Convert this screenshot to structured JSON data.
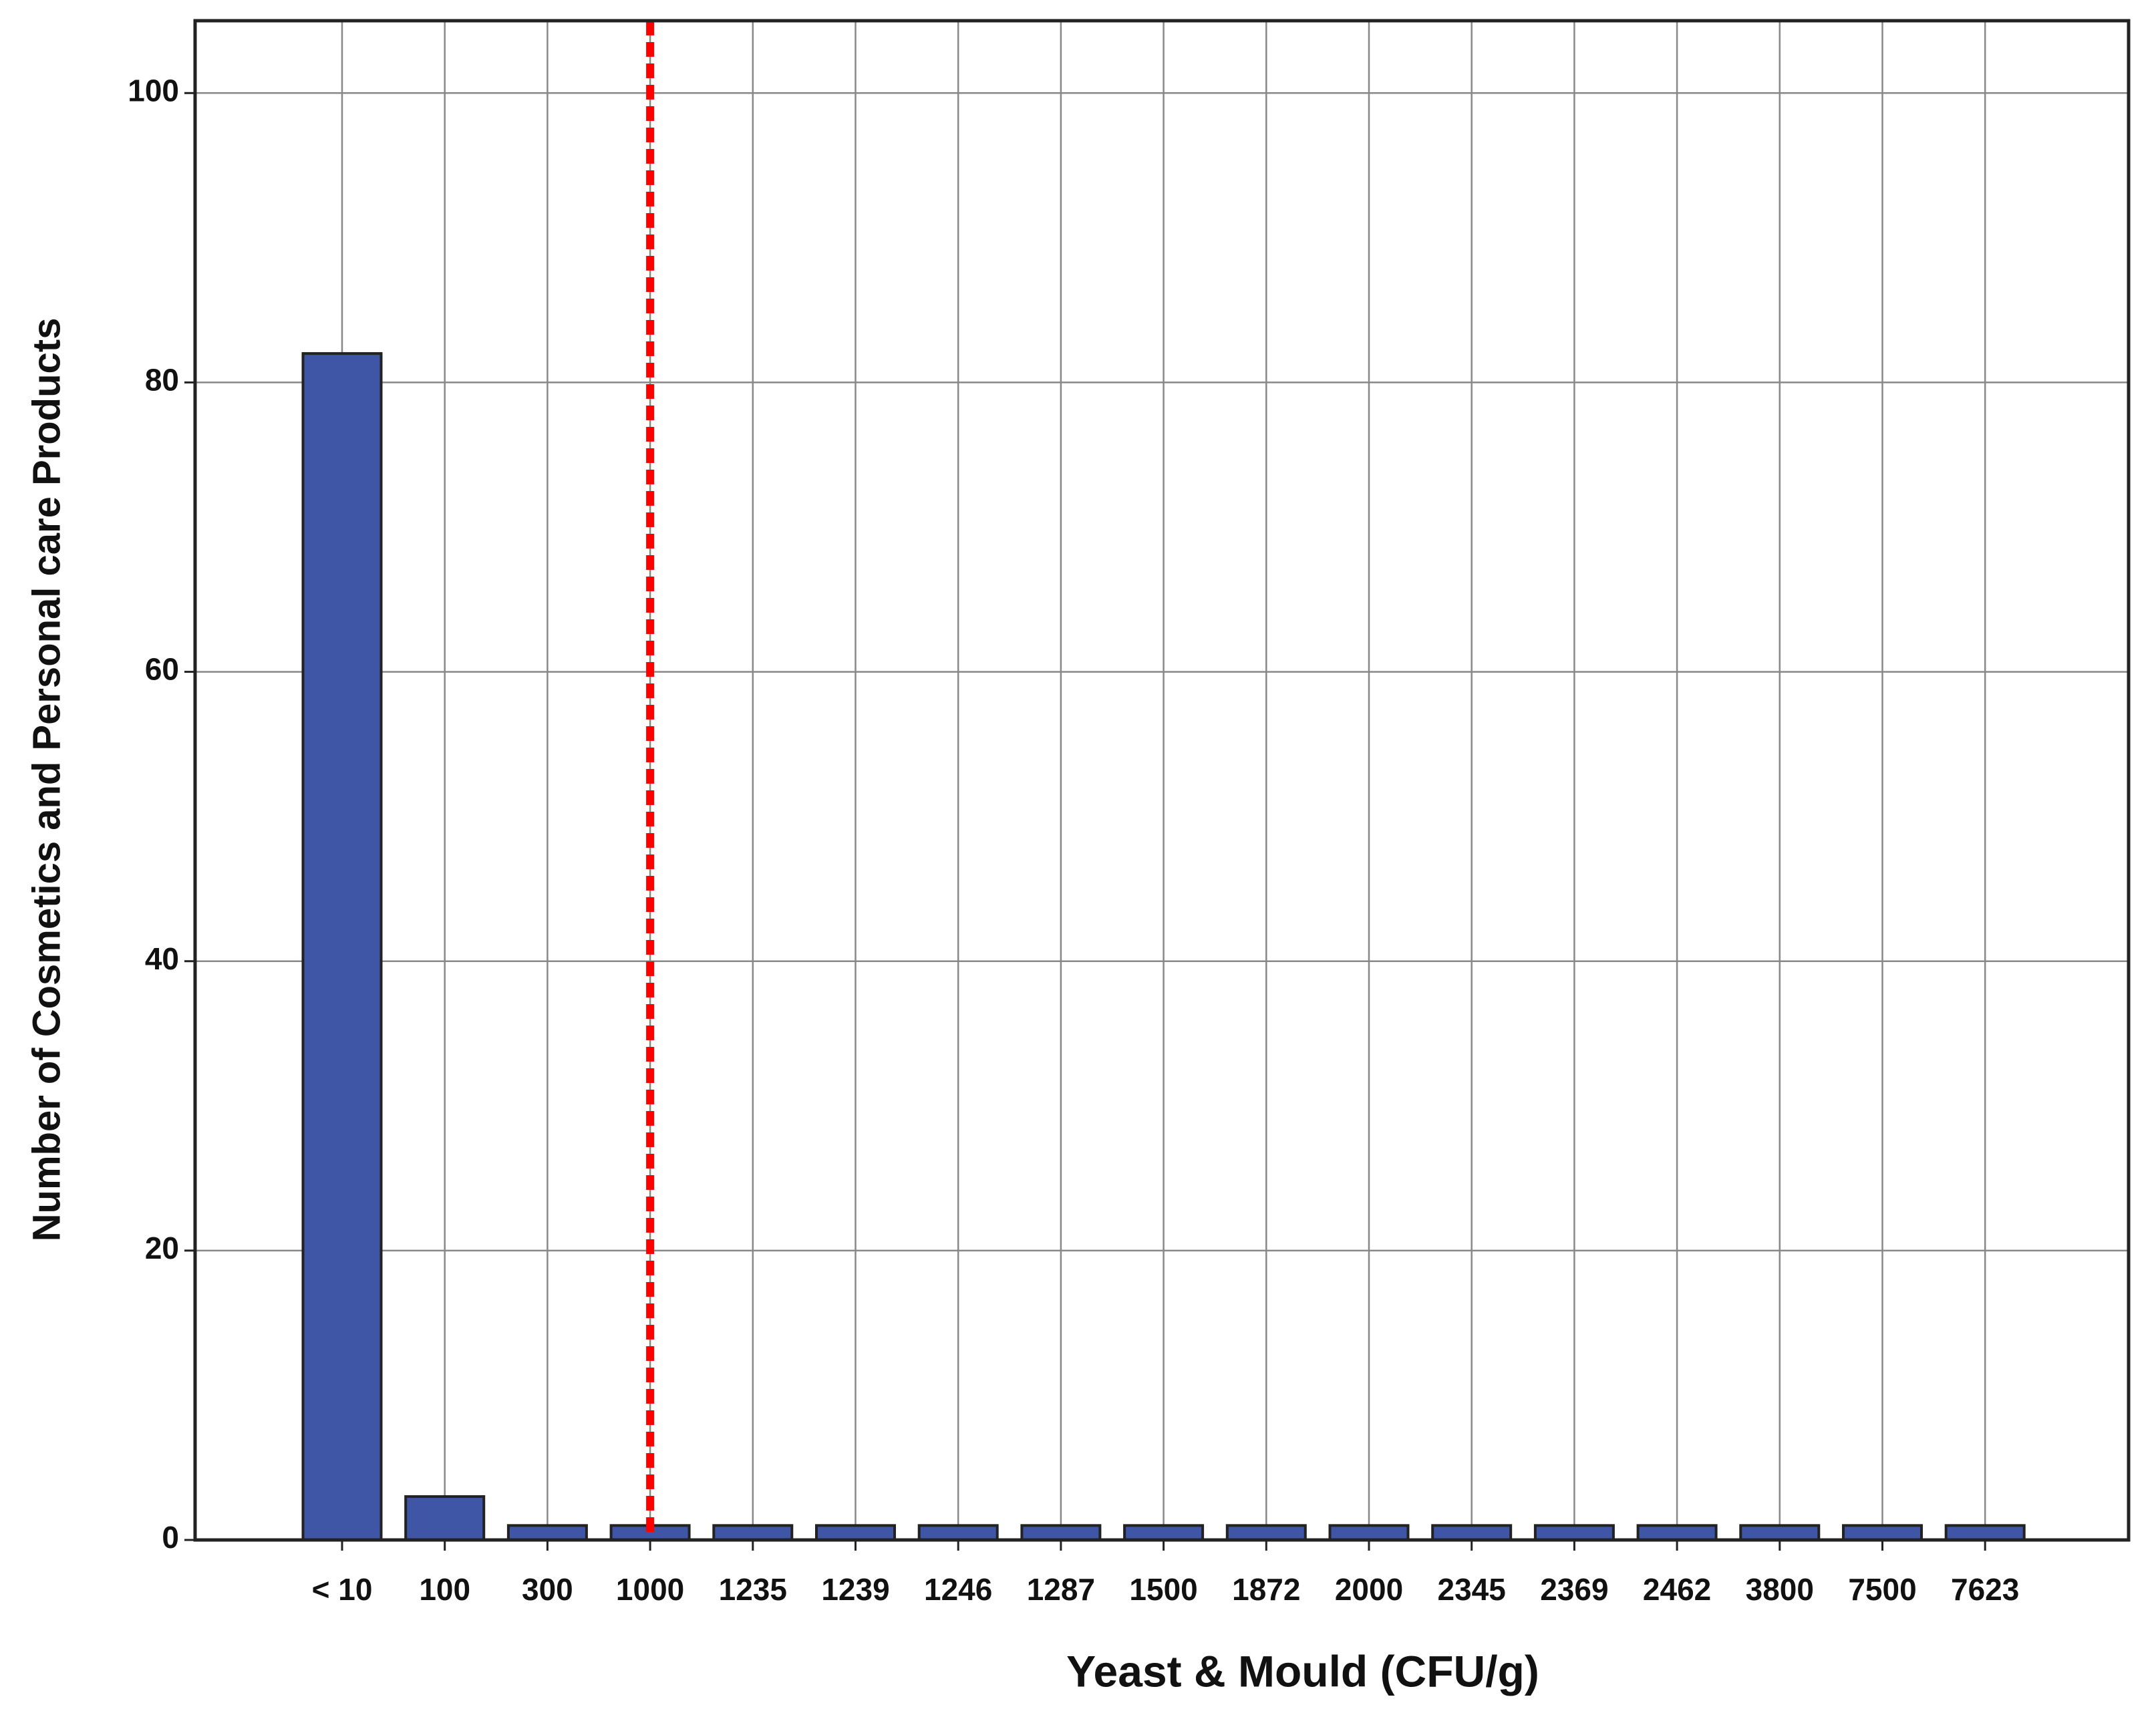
{
  "chart_data": {
    "type": "bar",
    "x_label": "Yeast & Mould (CFU/g)",
    "y_label": "Number of Cosmetics and Personal care Products",
    "categories": [
      "< 10",
      "100",
      "300",
      "1000",
      "1235",
      "1239",
      "1246",
      "1287",
      "1500",
      "1872",
      "2000",
      "2345",
      "2369",
      "2462",
      "3800",
      "7500",
      "7623"
    ],
    "values": [
      82,
      3,
      1,
      1,
      1,
      1,
      1,
      1,
      1,
      1,
      1,
      1,
      1,
      1,
      1,
      1,
      1
    ],
    "color": "#3f56a6",
    "ylim": [
      0,
      105
    ],
    "yticks": [
      0,
      20,
      40,
      60,
      80,
      100
    ],
    "grid": true,
    "vline": {
      "x": "1000",
      "color": "#ff0000",
      "style": "dashed"
    }
  }
}
